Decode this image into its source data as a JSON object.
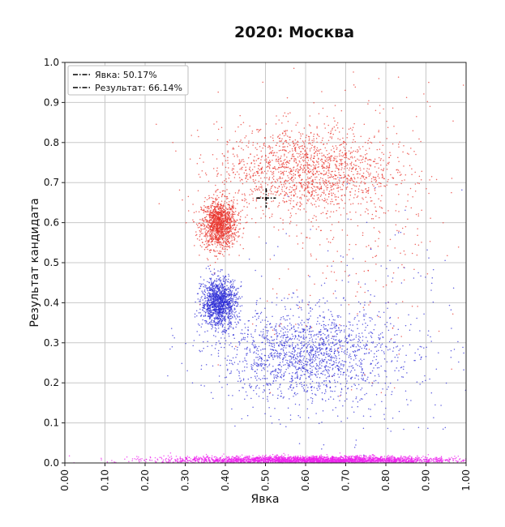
{
  "chart_data": {
    "type": "scatter",
    "title": "2020: Москва",
    "xlabel": "Явка",
    "ylabel": "Результат кандидата",
    "xlim": [
      0.0,
      1.0
    ],
    "ylim": [
      0.0,
      1.0
    ],
    "x_ticks": [
      "0.00",
      "0.10",
      "0.20",
      "0.30",
      "0.40",
      "0.50",
      "0.60",
      "0.70",
      "0.80",
      "0.90",
      "1.00"
    ],
    "y_ticks": [
      "0.0",
      "0.1",
      "0.2",
      "0.3",
      "0.4",
      "0.5",
      "0.6",
      "0.7",
      "0.8",
      "0.9",
      "1.0"
    ],
    "grid": true,
    "legend_position": "top-left",
    "legend": [
      {
        "label": "Явка",
        "value": "50.17%"
      },
      {
        "label": "Результат",
        "value": "66.14%"
      }
    ],
    "marker": {
      "x": 0.5017,
      "y": 0.6614,
      "color": "#000000"
    },
    "series_colors": {
      "red": "#e8312a",
      "blue": "#2b2bd6",
      "magenta": "#ee22ee"
    },
    "clusters": [
      {
        "color": "red",
        "x": 0.385,
        "y": 0.595,
        "sx": 0.022,
        "sy": 0.03,
        "count": 1300
      },
      {
        "color": "red",
        "x": 0.6,
        "y": 0.73,
        "sx": 0.11,
        "sy": 0.055,
        "count": 1600
      },
      {
        "color": "red",
        "x": 0.72,
        "y": 0.6,
        "sx": 0.14,
        "sy": 0.18,
        "count": 320
      },
      {
        "color": "blue",
        "x": 0.385,
        "y": 0.4,
        "sx": 0.022,
        "sy": 0.03,
        "count": 1300
      },
      {
        "color": "blue",
        "x": 0.6,
        "y": 0.27,
        "sx": 0.11,
        "sy": 0.055,
        "count": 1600
      },
      {
        "color": "blue",
        "x": 0.72,
        "y": 0.3,
        "sx": 0.14,
        "sy": 0.16,
        "count": 280
      },
      {
        "color": "magenta",
        "x": 0.62,
        "y": 0.007,
        "sx": 0.18,
        "sy": 0.005,
        "count": 3000
      }
    ]
  }
}
